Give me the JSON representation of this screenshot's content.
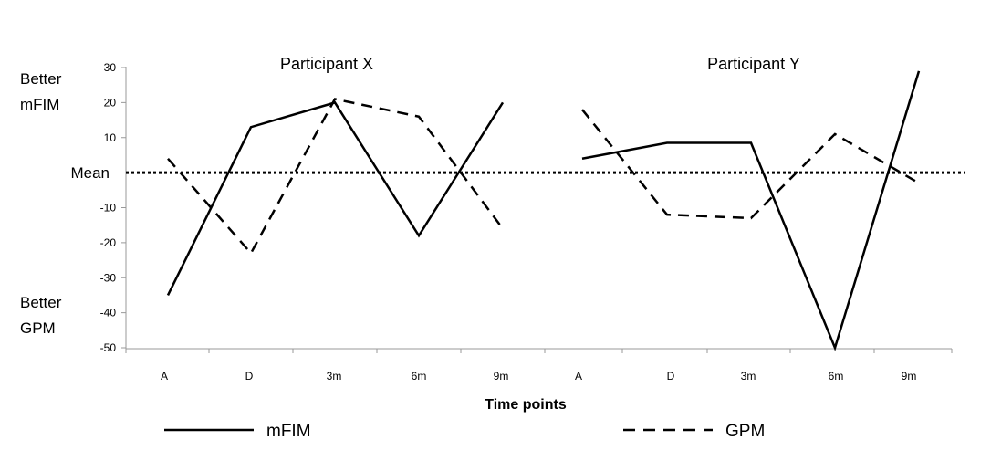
{
  "chart_data": {
    "type": "line",
    "xlabel": "Time points",
    "ylim": [
      -50,
      30
    ],
    "yticks": [
      30,
      20,
      10,
      -10,
      -20,
      -30,
      -40,
      -50
    ],
    "mean_label": "Mean",
    "side_labels": {
      "top": [
        "Better",
        "mFIM"
      ],
      "bottom": [
        "Better",
        "GPM"
      ]
    },
    "legend": [
      {
        "name": "mFIM",
        "style": "solid"
      },
      {
        "name": "GPM",
        "style": "dashed"
      }
    ],
    "panels": [
      {
        "title": "Participant X",
        "categories": [
          "A",
          "D",
          "3m",
          "6m",
          "9m"
        ],
        "series": [
          {
            "name": "mFIM",
            "values": [
              -35,
              13,
              20,
              -18,
              20
            ]
          },
          {
            "name": "GPM",
            "values": [
              4,
              -23,
              21,
              16,
              -16
            ]
          }
        ]
      },
      {
        "title": "Participant Y",
        "categories": [
          "A",
          "D",
          "3m",
          "6m",
          "9m"
        ],
        "series": [
          {
            "name": "mFIM",
            "values": [
              4,
              8.5,
              8.5,
              -50,
              29
            ]
          },
          {
            "name": "GPM",
            "values": [
              18,
              -12,
              -13,
              11,
              -3
            ]
          }
        ]
      }
    ]
  }
}
